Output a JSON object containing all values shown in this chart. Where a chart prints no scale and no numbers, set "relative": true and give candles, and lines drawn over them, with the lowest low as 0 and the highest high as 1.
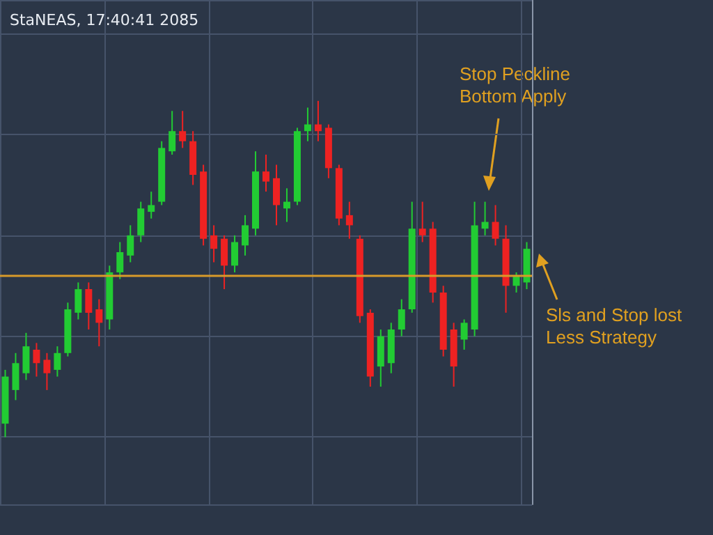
{
  "chart_data": {
    "type": "candlestick",
    "title": "StaNEAS, 17:40:41 2085",
    "relative": true,
    "grid": true,
    "categories": [
      null,
      null,
      null,
      null,
      null,
      null,
      null,
      null,
      null,
      null,
      null,
      null,
      null,
      null,
      null,
      null,
      null,
      null,
      null,
      null,
      null,
      null,
      null,
      null,
      null,
      null,
      null,
      null,
      null,
      null,
      null,
      null,
      null,
      null,
      null,
      null,
      null,
      null,
      null,
      null,
      null,
      null,
      null,
      null,
      null,
      null,
      null,
      null,
      null,
      null,
      null
    ],
    "ohlc": [
      [
        0.04,
        0.2,
        0,
        0.18
      ],
      [
        0.14,
        0.25,
        0.11,
        0.22
      ],
      [
        0.19,
        0.31,
        0.17,
        0.27
      ],
      [
        0.26,
        0.28,
        0.18,
        0.22
      ],
      [
        0.23,
        0.25,
        0.14,
        0.19
      ],
      [
        0.2,
        0.27,
        0.18,
        0.25
      ],
      [
        0.25,
        0.4,
        0.24,
        0.38
      ],
      [
        0.37,
        0.46,
        0.35,
        0.44
      ],
      [
        0.44,
        0.46,
        0.32,
        0.37
      ],
      [
        0.38,
        0.41,
        0.27,
        0.34
      ],
      [
        0.35,
        0.51,
        0.32,
        0.49
      ],
      [
        0.49,
        0.58,
        0.47,
        0.55
      ],
      [
        0.54,
        0.63,
        0.52,
        0.6
      ],
      [
        0.6,
        0.7,
        0.58,
        0.68
      ],
      [
        0.67,
        0.73,
        0.65,
        0.69
      ],
      [
        0.7,
        0.88,
        0.69,
        0.86
      ],
      [
        0.85,
        0.97,
        0.84,
        0.91
      ],
      [
        0.91,
        0.97,
        0.86,
        0.88
      ],
      [
        0.88,
        0.91,
        0.75,
        0.78
      ],
      [
        0.79,
        0.81,
        0.57,
        0.59
      ],
      [
        0.6,
        0.63,
        0.52,
        0.56
      ],
      [
        0.59,
        0.6,
        0.44,
        0.51
      ],
      [
        0.51,
        0.6,
        0.49,
        0.58
      ],
      [
        0.57,
        0.66,
        0.54,
        0.63
      ],
      [
        0.62,
        0.85,
        0.6,
        0.79
      ],
      [
        0.79,
        0.84,
        0.73,
        0.76
      ],
      [
        0.77,
        0.81,
        0.63,
        0.69
      ],
      [
        0.68,
        0.74,
        0.64,
        0.7
      ],
      [
        0.7,
        0.92,
        0.69,
        0.91
      ],
      [
        0.91,
        0.98,
        0.88,
        0.93
      ],
      [
        0.93,
        1,
        0.88,
        0.91
      ],
      [
        0.92,
        0.93,
        0.77,
        0.8
      ],
      [
        0.8,
        0.81,
        0.63,
        0.65
      ],
      [
        0.66,
        0.7,
        0.59,
        0.63
      ],
      [
        0.59,
        0.6,
        0.34,
        0.36
      ],
      [
        0.37,
        0.38,
        0.15,
        0.18
      ],
      [
        0.21,
        0.32,
        0.15,
        0.3
      ],
      [
        0.22,
        0.34,
        0.19,
        0.32
      ],
      [
        0.32,
        0.41,
        0.3,
        0.38
      ],
      [
        0.38,
        0.7,
        0.37,
        0.62
      ],
      [
        0.62,
        0.7,
        0.58,
        0.6
      ],
      [
        0.62,
        0.64,
        0.4,
        0.43
      ],
      [
        0.43,
        0.45,
        0.24,
        0.26
      ],
      [
        0.32,
        0.34,
        0.15,
        0.21
      ],
      [
        0.29,
        0.35,
        0.26,
        0.34
      ],
      [
        0.32,
        0.7,
        0.3,
        0.63
      ],
      [
        0.62,
        0.7,
        0.6,
        0.64
      ],
      [
        0.64,
        0.69,
        0.57,
        0.59
      ],
      [
        0.59,
        0.63,
        0.37,
        0.45
      ],
      [
        0.45,
        0.49,
        0.43,
        0.48
      ],
      [
        0.46,
        0.58,
        0.44,
        0.56
      ]
    ],
    "ref_lines": [
      {
        "axis": "y",
        "value": 0.48,
        "color": "#d89a2a"
      }
    ],
    "annotations": [
      "Stop Peckline\nBottom Apply",
      "Sls and Stop lost\nLess Strategy"
    ]
  }
}
